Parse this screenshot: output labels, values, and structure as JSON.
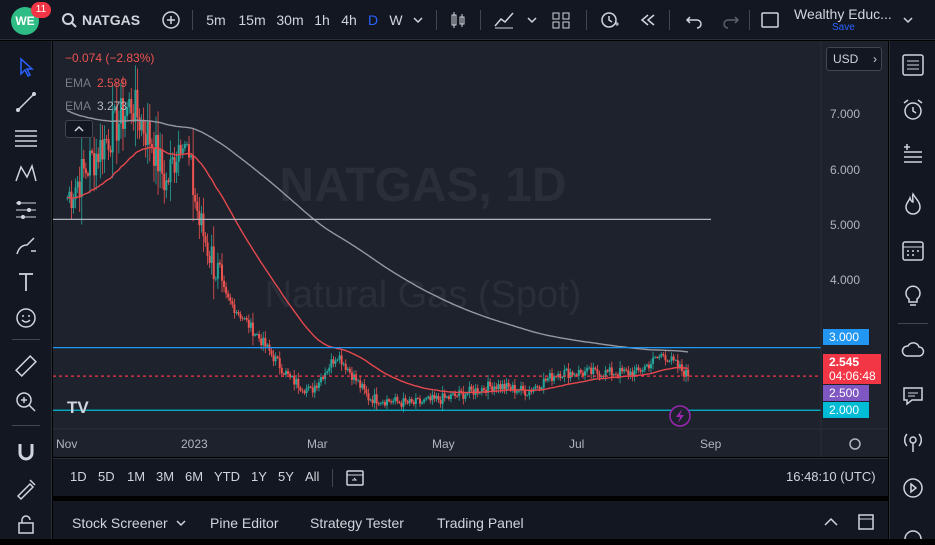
{
  "header": {
    "badge_count": "11",
    "symbol": "NATGAS",
    "intervals": [
      "5m",
      "15m",
      "30m",
      "1h",
      "4h",
      "D",
      "W"
    ],
    "active_interval": "D",
    "account": "Wealthy Educ...",
    "save_label": "Save"
  },
  "legend": {
    "change": "−0.074 (−2.83%)",
    "ema1_label": "EMA",
    "ema1_value": "2.589",
    "ema2_label": "EMA",
    "ema2_value": "3.273"
  },
  "watermark": {
    "symbol": "NATGAS, 1D",
    "name": "Natural Gas (Spot)"
  },
  "price_axis": {
    "currency": "USD",
    "ticks": [
      "7.000",
      "6.000",
      "5.000",
      "4.000"
    ],
    "labels": {
      "level_3": "3.000",
      "last_price": "2.545",
      "countdown": "04:06:48",
      "level_25": "2.500",
      "level_2": "2.000"
    }
  },
  "time_axis": {
    "ticks": [
      "Nov",
      "2023",
      "Mar",
      "May",
      "Jul",
      "Sep"
    ]
  },
  "range_bar": {
    "ranges": [
      "1D",
      "5D",
      "1M",
      "3M",
      "6M",
      "YTD",
      "1Y",
      "5Y",
      "All"
    ],
    "clock": "16:48:10 (UTC)"
  },
  "bottom_bar": {
    "tabs": [
      "Stock Screener",
      "Pine Editor",
      "Strategy Tester",
      "Trading Panel"
    ]
  },
  "colors": {
    "up": "#26a69a",
    "down": "#ef5350",
    "ema_fast": "#e5484d",
    "ema_slow": "#9598a1",
    "level_line": "#2196f3",
    "accent": "#2962ff"
  },
  "chart_data": {
    "type": "candlestick",
    "x_range": [
      "2022-10-20",
      "2023-09-05"
    ],
    "ylim": [
      1.7,
      7.9
    ],
    "approx_close_path": [
      {
        "x": "2022-10-25",
        "y": 5.4
      },
      {
        "x": "2022-11-10",
        "y": 6.2
      },
      {
        "x": "2022-11-25",
        "y": 6.9
      },
      {
        "x": "2022-12-05",
        "y": 6.3
      },
      {
        "x": "2022-12-12",
        "y": 5.6
      },
      {
        "x": "2022-12-20",
        "y": 6.5
      },
      {
        "x": "2022-12-28",
        "y": 5.0
      },
      {
        "x": "2023-01-10",
        "y": 3.8
      },
      {
        "x": "2023-01-25",
        "y": 3.2
      },
      {
        "x": "2023-02-10",
        "y": 2.5
      },
      {
        "x": "2023-02-20",
        "y": 2.3
      },
      {
        "x": "2023-03-05",
        "y": 2.9
      },
      {
        "x": "2023-03-20",
        "y": 2.2
      },
      {
        "x": "2023-04-10",
        "y": 2.1
      },
      {
        "x": "2023-04-28",
        "y": 2.2
      },
      {
        "x": "2023-05-20",
        "y": 2.4
      },
      {
        "x": "2023-06-05",
        "y": 2.3
      },
      {
        "x": "2023-06-20",
        "y": 2.6
      },
      {
        "x": "2023-07-10",
        "y": 2.6
      },
      {
        "x": "2023-07-28",
        "y": 2.6
      },
      {
        "x": "2023-08-10",
        "y": 2.9
      },
      {
        "x": "2023-08-22",
        "y": 2.55
      }
    ],
    "ema_fast_last": 2.589,
    "ema_slow_last": 3.273,
    "horizontal_levels": [
      5.05,
      3.0,
      2.5,
      2.0
    ],
    "last_price": 2.545
  }
}
